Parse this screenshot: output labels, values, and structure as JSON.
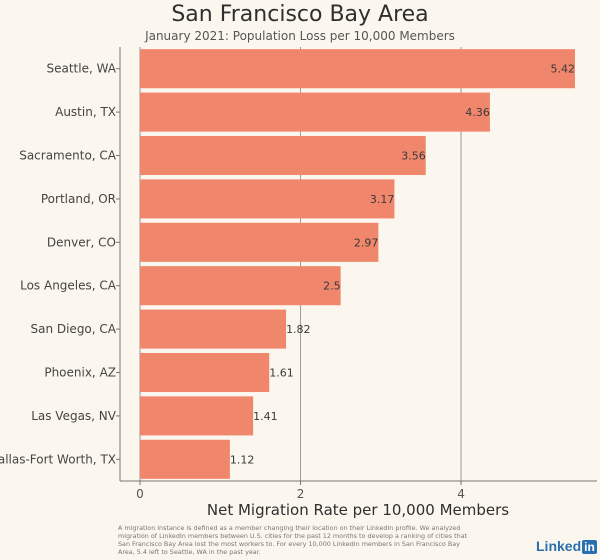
{
  "chart_data": {
    "type": "bar",
    "orientation": "horizontal",
    "title": "San Francisco Bay Area",
    "subtitle": "January 2021: Population Loss per 10,000 Members",
    "xlabel": "Net Migration Rate per 10,000 Members",
    "ylabel": "",
    "categories": [
      "Seattle, WA",
      "Austin, TX",
      "Sacramento, CA",
      "Portland, OR",
      "Denver, CO",
      "Los Angeles, CA",
      "San Diego, CA",
      "Phoenix, AZ",
      "Las Vegas, NV",
      "Dallas-Fort Worth, TX"
    ],
    "values": [
      5.42,
      4.36,
      3.56,
      3.17,
      2.97,
      2.5,
      1.82,
      1.61,
      1.41,
      1.12
    ],
    "value_labels": [
      "5.42",
      "4.36",
      "3.56",
      "3.17",
      "2.97",
      "2.5",
      "1.82",
      "1.61",
      "1.41",
      "1.12"
    ],
    "xlim": [
      0,
      5.42
    ],
    "xticks": [
      0,
      2,
      4
    ],
    "xtick_labels": [
      "0",
      "2",
      "4"
    ],
    "grid": true,
    "bar_color": "#f0866b"
  },
  "footnote": "A migration instance is defined as a member changing their location on their LinkedIn profile. We analyzed migration of LinkedIn members between U.S. cities for the past 12 months to develop a ranking of cities that San Francisco Bay Area lost the most workers to. For every 10,000 LinkedIn members in San Francisco Bay Area, 5.4 left to Seattle, WA in the past year.",
  "brand": {
    "name": "Linked",
    "badge": "in"
  }
}
